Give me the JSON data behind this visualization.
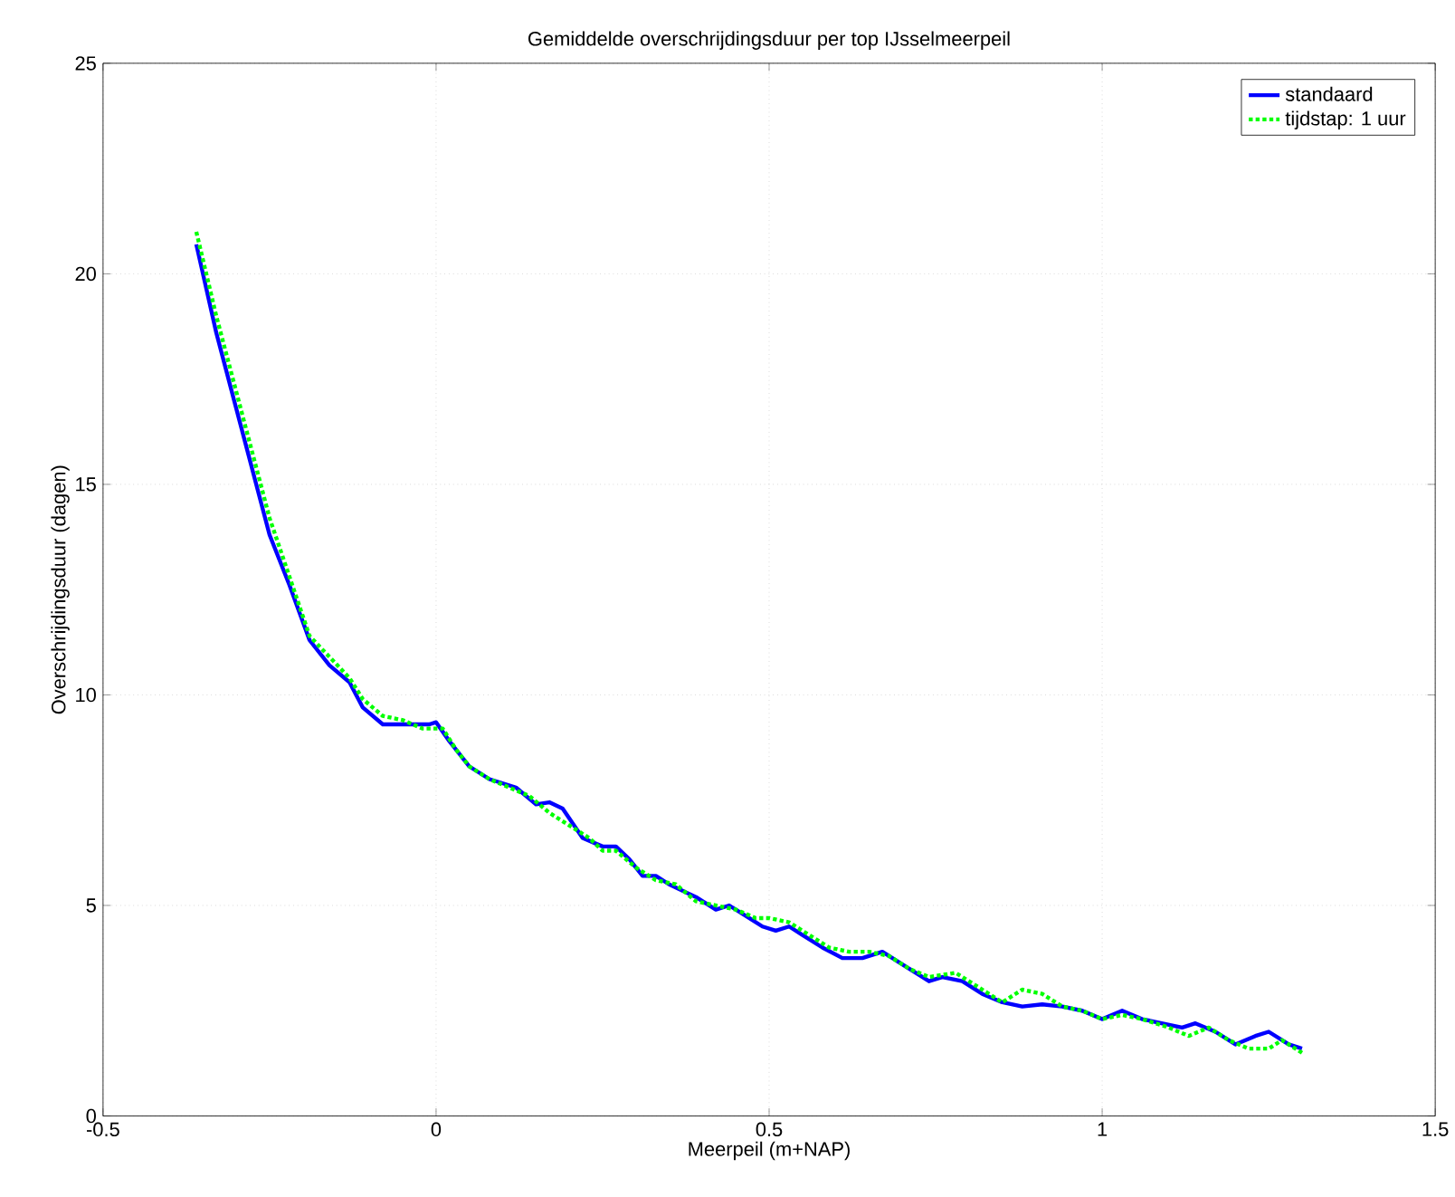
{
  "chart_data": {
    "type": "line",
    "title": "Gemiddelde overschrijdingsduur per top IJsselmeerpeil",
    "xlabel": "Meerpeil (m+NAP)",
    "ylabel": "Overschrijdingsduur (dagen)",
    "xlim": [
      -0.5,
      1.5
    ],
    "ylim": [
      0,
      25
    ],
    "xticks": [
      -0.5,
      0,
      0.5,
      1,
      1.5
    ],
    "yticks": [
      0,
      5,
      10,
      15,
      20,
      25
    ],
    "grid": true,
    "legend": "top right",
    "series": [
      {
        "name": "standaard",
        "color": "#0000ff",
        "line_style": "solid",
        "x": [
          -0.36,
          -0.33,
          -0.3,
          -0.27,
          -0.25,
          -0.22,
          -0.19,
          -0.16,
          -0.13,
          -0.11,
          -0.08,
          -0.05,
          -0.01,
          0.0,
          0.02,
          0.05,
          0.08,
          0.12,
          0.15,
          0.17,
          0.19,
          0.22,
          0.25,
          0.27,
          0.29,
          0.31,
          0.33,
          0.35,
          0.39,
          0.42,
          0.44,
          0.47,
          0.49,
          0.51,
          0.53,
          0.55,
          0.58,
          0.61,
          0.64,
          0.67,
          0.7,
          0.74,
          0.76,
          0.79,
          0.82,
          0.85,
          0.88,
          0.91,
          0.94,
          0.97,
          1.0,
          1.03,
          1.06,
          1.09,
          1.12,
          1.14,
          1.17,
          1.2,
          1.23,
          1.25,
          1.28,
          1.3
        ],
        "values": [
          20.7,
          18.6,
          16.8,
          15.0,
          13.8,
          12.6,
          11.3,
          10.7,
          10.3,
          9.7,
          9.3,
          9.3,
          9.3,
          9.35,
          8.9,
          8.3,
          8.0,
          7.8,
          7.4,
          7.45,
          7.3,
          6.6,
          6.4,
          6.4,
          6.1,
          5.7,
          5.7,
          5.5,
          5.2,
          4.9,
          5.0,
          4.7,
          4.5,
          4.4,
          4.5,
          4.3,
          4.0,
          3.75,
          3.75,
          3.9,
          3.6,
          3.2,
          3.3,
          3.2,
          2.9,
          2.7,
          2.6,
          2.65,
          2.6,
          2.5,
          2.3,
          2.5,
          2.3,
          2.2,
          2.1,
          2.2,
          2.0,
          1.7,
          1.9,
          2.0,
          1.7,
          1.6
        ]
      },
      {
        "name": "tijdstap: 1 uur",
        "color": "#00ff00",
        "line_style": "dotted",
        "x": [
          -0.36,
          -0.33,
          -0.3,
          -0.27,
          -0.25,
          -0.22,
          -0.19,
          -0.16,
          -0.13,
          -0.11,
          -0.08,
          -0.05,
          -0.02,
          0.01,
          0.03,
          0.05,
          0.08,
          0.11,
          0.14,
          0.17,
          0.2,
          0.23,
          0.25,
          0.27,
          0.3,
          0.33,
          0.36,
          0.39,
          0.42,
          0.45,
          0.48,
          0.5,
          0.53,
          0.56,
          0.59,
          0.62,
          0.65,
          0.68,
          0.71,
          0.74,
          0.78,
          0.81,
          0.85,
          0.88,
          0.91,
          0.94,
          0.97,
          1.0,
          1.03,
          1.06,
          1.1,
          1.13,
          1.16,
          1.19,
          1.22,
          1.25,
          1.27,
          1.3
        ],
        "values": [
          21.0,
          19.0,
          17.2,
          15.4,
          14.2,
          12.8,
          11.4,
          10.9,
          10.4,
          9.9,
          9.5,
          9.4,
          9.2,
          9.2,
          8.7,
          8.3,
          8.0,
          7.8,
          7.6,
          7.2,
          6.9,
          6.6,
          6.3,
          6.3,
          5.9,
          5.6,
          5.5,
          5.1,
          5.0,
          4.9,
          4.7,
          4.7,
          4.6,
          4.3,
          4.0,
          3.9,
          3.9,
          3.8,
          3.5,
          3.3,
          3.4,
          3.1,
          2.7,
          3.0,
          2.9,
          2.6,
          2.5,
          2.3,
          2.4,
          2.3,
          2.1,
          1.9,
          2.1,
          1.8,
          1.6,
          1.6,
          1.8,
          1.5
        ]
      }
    ]
  }
}
